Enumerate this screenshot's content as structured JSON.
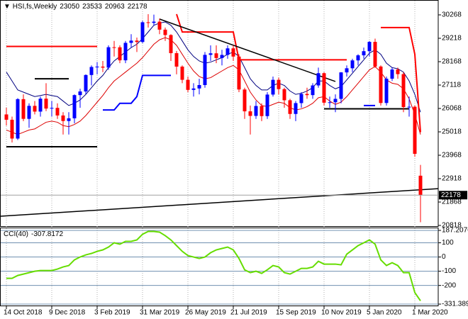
{
  "chart_data": [
    {
      "type": "candlestick",
      "title": "HSI,fs,Weekly",
      "categories": [
        "14 Oct 2018",
        null,
        null,
        null,
        null,
        null,
        null,
        null,
        "9 Dec 2018",
        null,
        null,
        null,
        null,
        null,
        null,
        null,
        "3 Feb 2019",
        null,
        null,
        null,
        null,
        null,
        null,
        null,
        "31 Mar 2019",
        null,
        null,
        null,
        null,
        null,
        null,
        null,
        "26 May 2019",
        null,
        null,
        null,
        null,
        null,
        null,
        null,
        "21 Jul 2019",
        null,
        null,
        null,
        null,
        null,
        null,
        null,
        "15 Sep 2019",
        null,
        null,
        null,
        null,
        null,
        null,
        null,
        "10 Nov 2019",
        null,
        null,
        null,
        null,
        null,
        null,
        null,
        "5 Jan 2020",
        null,
        null,
        null,
        null,
        null,
        null,
        null,
        "1 Mar 2020",
        null
      ],
      "xlim": [
        0,
        77.125
      ],
      "ylim": [
        20818,
        30872
      ],
      "yticks": [
        20818,
        21868,
        22918,
        23968,
        25018,
        26068,
        27118,
        28168,
        29218,
        30268
      ],
      "grid": true,
      "up_color": "#0000ff",
      "down_color": "#ff0000",
      "open": [
        25800,
        25561,
        24717,
        26486,
        25601,
        26184,
        25927,
        26507,
        26063,
        26094,
        25753,
        25504,
        25626,
        26667,
        26830,
        27569,
        27930,
        27946,
        27901,
        28816,
        28812,
        28228,
        29012,
        29113,
        29051,
        29936,
        29909,
        29963,
        29605,
        29363,
        28550,
        27946,
        27354,
        26901,
        26965,
        27118,
        28473,
        28543,
        28331,
        28471,
        28765,
        28397,
        26919,
        25939,
        25734,
        26179,
        25725,
        26691,
        27353,
        26936,
        26436,
        25821,
        26308,
        26719,
        26667,
        27101,
        27651,
        26327,
        26346,
        26498,
        27687,
        27871,
        28225,
        28452,
        28638,
        29056,
        27950,
        26313,
        27404,
        27816,
        27609,
        26130,
        26146,
        23050
      ],
      "high": [
        26100,
        25700,
        26530,
        26700,
        26300,
        26400,
        26600,
        27200,
        26400,
        26300,
        25900,
        25900,
        26700,
        26950,
        27600,
        28000,
        28150,
        28200,
        28900,
        29100,
        28900,
        29100,
        29400,
        29250,
        30000,
        30300,
        30280,
        30100,
        29700,
        29400,
        28650,
        28000,
        27500,
        27200,
        27400,
        28600,
        28900,
        28900,
        28700,
        28900,
        28900,
        28500,
        27000,
        26200,
        26400,
        26300,
        26800,
        27500,
        27450,
        27000,
        26500,
        26400,
        26800,
        27000,
        27200,
        27900,
        27700,
        26600,
        26700,
        27700,
        28000,
        28300,
        28500,
        28800,
        29100,
        29200,
        28000,
        27500,
        27900,
        27900,
        27700,
        26600,
        26200,
        23533
      ],
      "low": [
        25300,
        24540,
        24650,
        25500,
        25200,
        25800,
        25700,
        25950,
        25700,
        25600,
        24900,
        24900,
        25400,
        26100,
        26700,
        27100,
        27600,
        27700,
        27800,
        28400,
        28100,
        28100,
        28800,
        28600,
        29000,
        29700,
        29800,
        29400,
        29100,
        28200,
        27600,
        27200,
        26800,
        26600,
        26700,
        27000,
        28200,
        28100,
        28000,
        28300,
        28200,
        26800,
        25600,
        24900,
        25600,
        25500,
        25600,
        26600,
        26700,
        26100,
        25600,
        25500,
        26100,
        26500,
        26500,
        27000,
        26200,
        26100,
        25900,
        26300,
        27500,
        27700,
        28000,
        28300,
        28400,
        27900,
        26200,
        26200,
        27300,
        27400,
        25900,
        25700,
        23900,
        20963
      ],
      "close": [
        25561,
        24717,
        26486,
        25601,
        26184,
        25927,
        26507,
        26063,
        26094,
        25753,
        25504,
        25626,
        26667,
        26830,
        27569,
        27930,
        27946,
        27901,
        28816,
        28812,
        28228,
        29012,
        29113,
        29051,
        29936,
        29909,
        29963,
        29605,
        29363,
        28550,
        27946,
        27354,
        26901,
        26965,
        27118,
        28473,
        28543,
        28331,
        28471,
        28765,
        28397,
        26919,
        25939,
        25734,
        26179,
        25725,
        26691,
        27353,
        26936,
        26436,
        25821,
        26308,
        26719,
        26667,
        27101,
        27651,
        26327,
        26346,
        26498,
        27687,
        27871,
        28225,
        28452,
        28638,
        29056,
        27950,
        26313,
        27404,
        27816,
        27609,
        26130,
        26146,
        24032,
        22178
      ],
      "lines": [
        {
          "color": "#000080",
          "width": 1,
          "values": [
            27700,
            27300,
            26900,
            26800,
            26700,
            26600,
            26650,
            26700,
            26650,
            26600,
            26400,
            26200,
            26300,
            26450,
            26700,
            27000,
            27300,
            27550,
            27900,
            28200,
            28400,
            28600,
            28800,
            28950,
            29200,
            29500,
            29800,
            29900,
            29950,
            29800,
            29500,
            29100,
            28700,
            28400,
            28200,
            28100,
            28150,
            28250,
            28350,
            28500,
            28600,
            28400,
            27900,
            27400,
            27100,
            26900,
            26900,
            27100,
            27200,
            27100,
            26850,
            26700,
            26750,
            26850,
            27000,
            27300,
            27300,
            27100,
            26950,
            27050,
            27350,
            27650,
            27950,
            28250,
            28550,
            28700,
            28500,
            28100,
            27900,
            27850,
            27700,
            27300,
            26700,
            25900
          ]
        },
        {
          "color": "#dd0000",
          "width": 1,
          "values": [
            25100,
            25000,
            24900,
            25000,
            25100,
            25150,
            25300,
            25450,
            25500,
            25450,
            25300,
            25250,
            25350,
            25500,
            25750,
            26050,
            26350,
            26650,
            27000,
            27300,
            27500,
            27700,
            27900,
            28100,
            28350,
            28650,
            28950,
            29150,
            29250,
            29150,
            28900,
            28500,
            28100,
            27750,
            27500,
            27400,
            27450,
            27600,
            27750,
            27900,
            28000,
            27800,
            27300,
            26800,
            26450,
            26200,
            26150,
            26250,
            26350,
            26300,
            26100,
            26000,
            26050,
            26150,
            26300,
            26550,
            26600,
            26400,
            26250,
            26350,
            26600,
            26900,
            27200,
            27500,
            27800,
            27950,
            27700,
            27350,
            27200,
            27150,
            26950,
            26500,
            25800,
            24900
          ]
        },
        {
          "color": "#ff0000",
          "width": 2,
          "values": [
            28850,
            28850,
            28850,
            28850,
            28850,
            28850,
            28850,
            28850,
            28850,
            28850,
            28850,
            28850,
            28850,
            28850,
            28850,
            28850,
            28850,
            null,
            null,
            null,
            null,
            null,
            null,
            null,
            null,
            null,
            null,
            null,
            null,
            null,
            30300,
            29500,
            29500,
            29500,
            29500,
            29500,
            29500,
            29500,
            29500,
            29500,
            29500,
            28250,
            28250,
            28250,
            28250,
            28250,
            28250,
            28250,
            28250,
            28250,
            28250,
            28250,
            28250,
            28250,
            28250,
            28250,
            28250,
            28250,
            28250,
            28250,
            28250,
            null,
            null,
            null,
            null,
            null,
            29700,
            29700,
            29700,
            29700,
            29700,
            29700,
            28500,
            25000
          ]
        },
        {
          "color": "#000000",
          "width": 2,
          "values": [
            24350,
            24350,
            24350,
            24350,
            24350,
            24350,
            24350,
            24350,
            24350,
            24350,
            24350,
            24350,
            24350,
            24350,
            24350,
            24350,
            24350,
            null,
            null,
            null,
            null,
            null,
            null,
            null,
            null,
            null,
            null,
            null,
            null,
            null,
            null,
            null,
            null,
            null,
            null,
            null,
            null,
            null,
            null,
            null,
            null,
            null,
            null,
            null,
            null,
            null,
            null,
            null,
            null,
            null,
            null,
            null,
            null,
            null,
            null,
            null,
            null,
            null,
            null,
            null,
            null,
            null,
            null,
            null,
            null,
            null,
            null,
            null,
            null,
            null,
            null,
            null,
            null,
            null
          ]
        },
        {
          "color": "#000000",
          "width": 2,
          "values": [
            null,
            null,
            null,
            null,
            null,
            27400,
            27400,
            27400,
            27400,
            27400,
            27400,
            27400,
            null,
            null,
            null,
            null,
            null,
            null,
            null,
            null,
            null,
            null,
            null,
            null,
            null,
            null,
            null,
            null,
            null,
            null,
            null,
            null,
            null,
            null,
            null,
            null,
            null,
            null,
            null,
            null,
            null,
            null,
            null,
            null,
            null,
            null,
            null,
            null,
            null,
            null,
            null,
            null,
            null,
            null,
            null,
            null,
            26050,
            26050,
            26050,
            26050,
            26050,
            26050,
            26050,
            26050,
            26050,
            26050,
            26050,
            26050,
            26050,
            26050,
            26050,
            26050,
            null,
            null
          ]
        },
        {
          "color": "#0000ff",
          "width": 2,
          "values": [
            null,
            null,
            null,
            null,
            null,
            null,
            null,
            null,
            null,
            null,
            null,
            null,
            null,
            null,
            null,
            null,
            null,
            26000,
            26000,
            26000,
            26300,
            26300,
            26300,
            26600,
            27550,
            27550,
            27550,
            27550,
            27550,
            27550,
            null,
            null,
            null,
            null,
            null,
            null,
            null,
            null,
            null,
            null,
            null,
            null,
            null,
            null,
            null,
            null,
            null,
            null,
            null,
            null,
            null,
            null,
            null,
            null,
            null,
            null,
            null,
            null,
            null,
            null,
            null,
            null,
            null,
            26200,
            26200,
            26200,
            null,
            null,
            null,
            null,
            null,
            null,
            null,
            null
          ]
        }
      ],
      "trendlines": [
        {
          "color": "#000000",
          "x": [
            28,
            59
          ],
          "values": [
            30080,
            27280
          ]
        },
        {
          "color": "#000000",
          "x": [
            0,
            77.125
          ],
          "values": [
            21230,
            22470
          ]
        }
      ]
    },
    {
      "type": "line",
      "title": "CCI(40)",
      "ylim": [
        -331.389,
        187.2076
      ],
      "yticks": [
        187.2076,
        100,
        0,
        -100,
        -200,
        -331.389
      ],
      "color": "#66dd00",
      "values": [
        -150,
        -150,
        -130,
        -120,
        -110,
        -100,
        -95,
        -95,
        -95,
        -85,
        -70,
        -60,
        -20,
        0,
        15,
        25,
        40,
        50,
        70,
        100,
        90,
        110,
        110,
        120,
        160,
        180,
        180,
        175,
        150,
        120,
        80,
        40,
        10,
        0,
        -10,
        0,
        30,
        50,
        60,
        70,
        50,
        -10,
        -90,
        -110,
        -100,
        -115,
        -90,
        -60,
        -70,
        -110,
        -120,
        -100,
        -80,
        -80,
        -70,
        -30,
        -50,
        -50,
        -50,
        -55,
        20,
        50,
        80,
        100,
        120,
        90,
        -20,
        -60,
        -40,
        -60,
        -110,
        -110,
        -250,
        -307.8172
      ]
    }
  ]
}
